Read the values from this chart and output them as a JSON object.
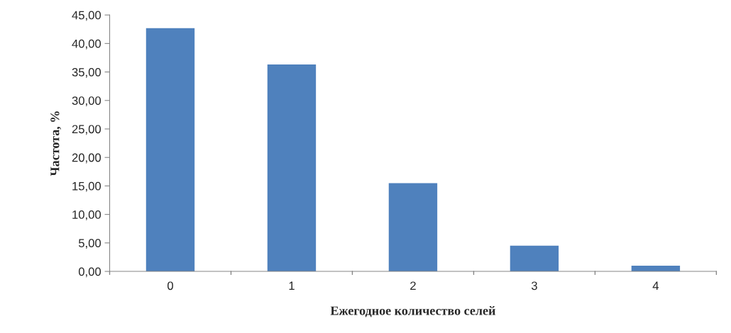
{
  "chart_data": {
    "type": "bar",
    "xlabel": "Ежегодное количество селей",
    "ylabel": "Частота, %",
    "categories": [
      "0",
      "1",
      "2",
      "3",
      "4"
    ],
    "series": [
      {
        "color": "#4f81bd",
        "values": [
          42.7,
          36.3,
          15.5,
          4.5,
          1.0
        ]
      }
    ],
    "ylim": [
      0,
      45
    ],
    "yticks": [
      {
        "value": 0,
        "label": "0,00"
      },
      {
        "value": 5,
        "label": "5,00"
      },
      {
        "value": 10,
        "label": "10,00"
      },
      {
        "value": 15,
        "label": "15,00"
      },
      {
        "value": 20,
        "label": "20,00"
      },
      {
        "value": 25,
        "label": "25,00"
      },
      {
        "value": 30,
        "label": "30,00"
      },
      {
        "value": 35,
        "label": "35,00"
      },
      {
        "value": 40,
        "label": "40,00"
      },
      {
        "value": 45,
        "label": "45,00"
      }
    ],
    "grid": false,
    "legend": false
  }
}
